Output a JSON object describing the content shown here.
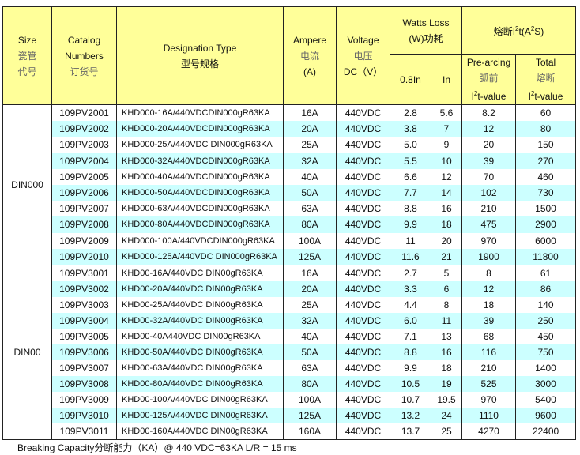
{
  "header": {
    "size": [
      "Size",
      "瓷管",
      "代号"
    ],
    "catalog": [
      "Catalog",
      "Numbers",
      "订货号"
    ],
    "designation": [
      "Designation Type",
      "型号规格"
    ],
    "ampere": [
      "Ampere",
      "电流",
      "(A)"
    ],
    "voltage": [
      "Voltage",
      "电压",
      "DC（V）"
    ],
    "watts": [
      "Watts Loss",
      "(W)功耗"
    ],
    "watts_sub": [
      "0.8In",
      "In"
    ],
    "i2t_prefix": "熔断I",
    "i2t_mid": "t(A",
    "i2t_suffix": "S)",
    "prearc": [
      "Pre-arcing",
      "弧前",
      "t-value"
    ],
    "total": [
      "Total",
      "熔断",
      "t-value"
    ],
    "i_letter": "I",
    "sup2": "2"
  },
  "groups": [
    {
      "size": "DIN000",
      "rows": [
        [
          "109PV2001",
          "KHD000-16A/440VDCDIN000gR63KA",
          "16A",
          "440VDC",
          "2.8",
          "5.6",
          "8.2",
          "60"
        ],
        [
          "109PV2002",
          "KHD000-20A/440VDCDIN000gR63KA",
          "20A",
          "440VDC",
          "3.8",
          "7",
          "12",
          "80"
        ],
        [
          "109PV2003",
          "KHD000-25A/440VDC DIN000gR63KA",
          "25A",
          "440VDC",
          "5.0",
          "9",
          "20",
          "150"
        ],
        [
          "109PV2004",
          "KHD000-32A/440VDCDIN000gR63KA",
          "32A",
          "440VDC",
          "5.5",
          "10",
          "39",
          "270"
        ],
        [
          "109PV2005",
          "KHD000-40A/440VDCDIN000gR63KA",
          "40A",
          "440VDC",
          "6.6",
          "12",
          "70",
          "460"
        ],
        [
          "109PV2006",
          "KHD000-50A/440VDCDIN000gR63KA",
          "50A",
          "440VDC",
          "7.7",
          "14",
          "102",
          "730"
        ],
        [
          "109PV2007",
          "KHD000-63A/440VDCDIN000gR63KA",
          "63A",
          "440VDC",
          "8.8",
          "16",
          "210",
          "1500"
        ],
        [
          "109PV2008",
          "KHD000-80A/440VDCDIN000gR63KA",
          "80A",
          "440VDC",
          "9.9",
          "18",
          "475",
          "2900"
        ],
        [
          "109PV2009",
          "KHD000-100A/440VDCDIN000gR63KA",
          "100A",
          "440VDC",
          "11",
          "20",
          "970",
          "6000"
        ],
        [
          "109PV2010",
          "KHD000-125A/440VDC DIN000gR63KA",
          "125A",
          "440VDC",
          "11.6",
          "21",
          "1900",
          "11800"
        ]
      ]
    },
    {
      "size": "DIN00",
      "rows": [
        [
          "109PV3001",
          "KHD00-16A/440VDC DIN00gR63KA",
          "16A",
          "440VDC",
          "2.7",
          "5",
          "8",
          "61"
        ],
        [
          "109PV3002",
          "KHD00-20A/440VDC DIN00gR63KA",
          "20A",
          "440VDC",
          "3.3",
          "6",
          "12",
          "86"
        ],
        [
          "109PV3003",
          "KHD00-25A/440VDC DIN00gR63KA",
          "25A",
          "440VDC",
          "4.4",
          "8",
          "18",
          "140"
        ],
        [
          "109PV3004",
          "KHD00-32A/440VDC DIN00gR63KA",
          "32A",
          "440VDC",
          "6.0",
          "11",
          "39",
          "250"
        ],
        [
          "109PV3005",
          "KHD00-40A440VDC DIN00gR63KA",
          "40A",
          "440VDC",
          "7.1",
          "13",
          "68",
          "450"
        ],
        [
          "109PV3006",
          "KHD00-50A/440VDC DIN00gR63KA",
          "50A",
          "440VDC",
          "8.8",
          "16",
          "116",
          "750"
        ],
        [
          "109PV3007",
          "KHD00-63A/440VDC DIN00gR63KA",
          "63A",
          "440VDC",
          "9.9",
          "18",
          "210",
          "1400"
        ],
        [
          "109PV3008",
          "KHD00-80A/440VDC DIN00gR63KA",
          "80A",
          "440VDC",
          "10.5",
          "19",
          "525",
          "3000"
        ],
        [
          "109PV3009",
          "KHD00-100A/440VDC DIN00gR63KA",
          "100A",
          "440VDC",
          "10.7",
          "19.5",
          "970",
          "5400"
        ],
        [
          "109PV3010",
          "KHD00-125A/440VDC DIN00gR63KA",
          "125A",
          "440VDC",
          "13.2",
          "24",
          "1110",
          "9600"
        ],
        [
          "109PV3011",
          "KHD00-160A/440VDC DIN00gR63KA",
          "160A",
          "440VDC",
          "13.7",
          "25",
          "4270",
          "22400"
        ]
      ]
    }
  ],
  "footer": "Breaking Capacity分断能力（KA）@ 440 VDC=63KA    L/R = 15 ms",
  "colors": {
    "header_bg": "#ffff99",
    "stripe": "#ccffff"
  }
}
